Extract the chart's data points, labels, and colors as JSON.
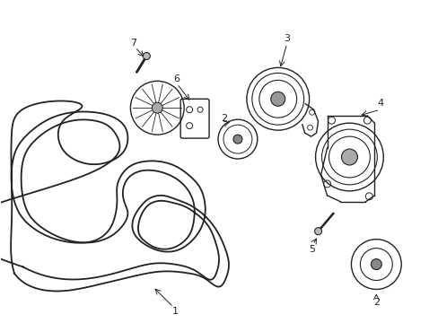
{
  "background_color": "#ffffff",
  "line_color": "#222222",
  "label_color": "#000000",
  "fig_width": 4.89,
  "fig_height": 3.6,
  "dpi": 100,
  "belt_lw": 1.3,
  "component_lw": 1.0
}
